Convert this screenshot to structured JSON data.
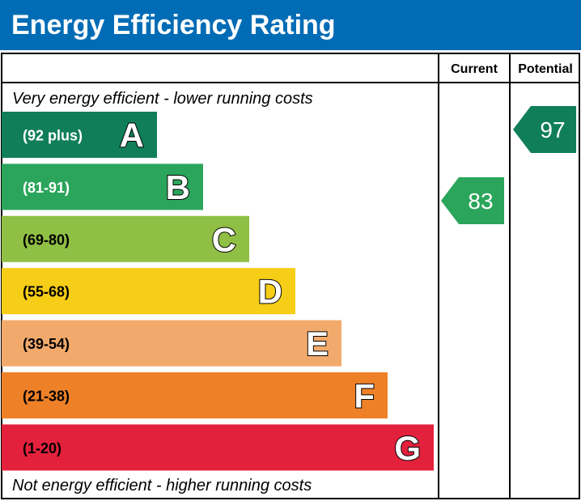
{
  "title": "Energy Efficiency Rating",
  "chart_data": {
    "type": "bar",
    "columns": [
      "Current",
      "Potential"
    ],
    "top_note": "Very energy efficient - lower running costs",
    "bottom_note": "Not energy efficient - higher running costs",
    "bands": [
      {
        "letter": "A",
        "range": "(92 plus)",
        "color": "#107f59",
        "label_color": "#ffffff"
      },
      {
        "letter": "B",
        "range": "(81-91)",
        "color": "#2ba55b",
        "label_color": "#ffffff"
      },
      {
        "letter": "C",
        "range": "(69-80)",
        "color": "#8fbf44",
        "label_color": "#000000"
      },
      {
        "letter": "D",
        "range": "(55-68)",
        "color": "#f6cd17",
        "label_color": "#000000"
      },
      {
        "letter": "E",
        "range": "(39-54)",
        "color": "#f2aa6c",
        "label_color": "#000000"
      },
      {
        "letter": "F",
        "range": "(21-38)",
        "color": "#ee8128",
        "label_color": "#000000"
      },
      {
        "letter": "G",
        "range": "(1-20)",
        "color": "#e3213c",
        "label_color": "#000000"
      }
    ],
    "current": {
      "value": "83",
      "band": "B",
      "color": "#2ba55b"
    },
    "potential": {
      "value": "97",
      "band": "A",
      "color": "#107f59"
    }
  }
}
